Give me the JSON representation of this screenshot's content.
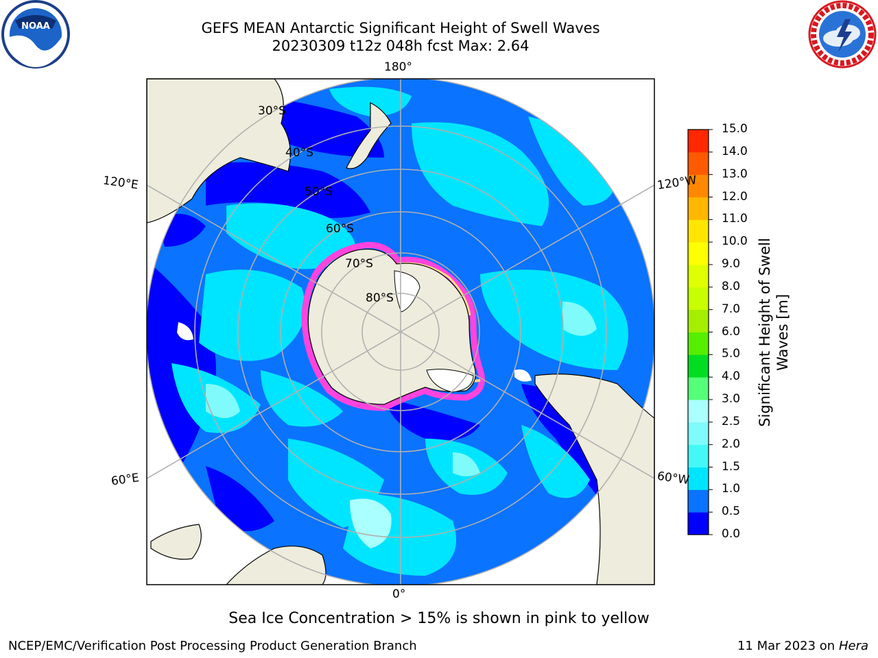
{
  "header": {
    "title_line1": "GEFS MEAN Antarctic Significant Height of Swell Waves",
    "title_line2": "20230309 t12z 048h fcst   Max: 2.64"
  },
  "logos": {
    "left": "NOAA",
    "right": "NATIONAL WEATHER SERVICE"
  },
  "map": {
    "projection": "south-polar-stereographic",
    "lon_labels": {
      "top": "180°",
      "bottom": "0°",
      "upper_left": "120°E",
      "upper_right": "120°W",
      "lower_left": "60°E",
      "lower_right": "60°W"
    },
    "lat_labels": [
      "30°S",
      "40°S",
      "50°S",
      "60°S",
      "70°S",
      "80°S"
    ],
    "colors": {
      "land": "#eeecdc",
      "ice_white": "#ffffff",
      "grid": "#b0b0b0",
      "ice_edge": "#ff44dd",
      "ice_core": "#ffe08a"
    }
  },
  "colorbar": {
    "label_line1": "Significant Height of Swell",
    "label_line2": "Waves [m]",
    "ticks": [
      "0.0",
      "0.5",
      "1.0",
      "1.5",
      "2.0",
      "2.5",
      "3.0",
      "4.0",
      "5.0",
      "6.0",
      "7.0",
      "8.0",
      "9.0",
      "10.0",
      "11.0",
      "12.0",
      "13.0",
      "14.0",
      "15.0"
    ],
    "colors": [
      "#0000ff",
      "#0a73ff",
      "#00e5ff",
      "#44f8f8",
      "#7ffbfb",
      "#aaffff",
      "#55ff77",
      "#00dd22",
      "#55ee00",
      "#a5ee00",
      "#c8ff00",
      "#e0ff00",
      "#ffff00",
      "#ffe600",
      "#ffb700",
      "#ff8800",
      "#ff5a00",
      "#ff2800"
    ]
  },
  "caption": "Sea Ice Concentration > 15% is shown in pink to yellow",
  "footer": {
    "left": "NCEP/EMC/Verification Post Processing Product Generation Branch",
    "right_date": "11 Mar 2023 on",
    "right_host": "Hera"
  }
}
